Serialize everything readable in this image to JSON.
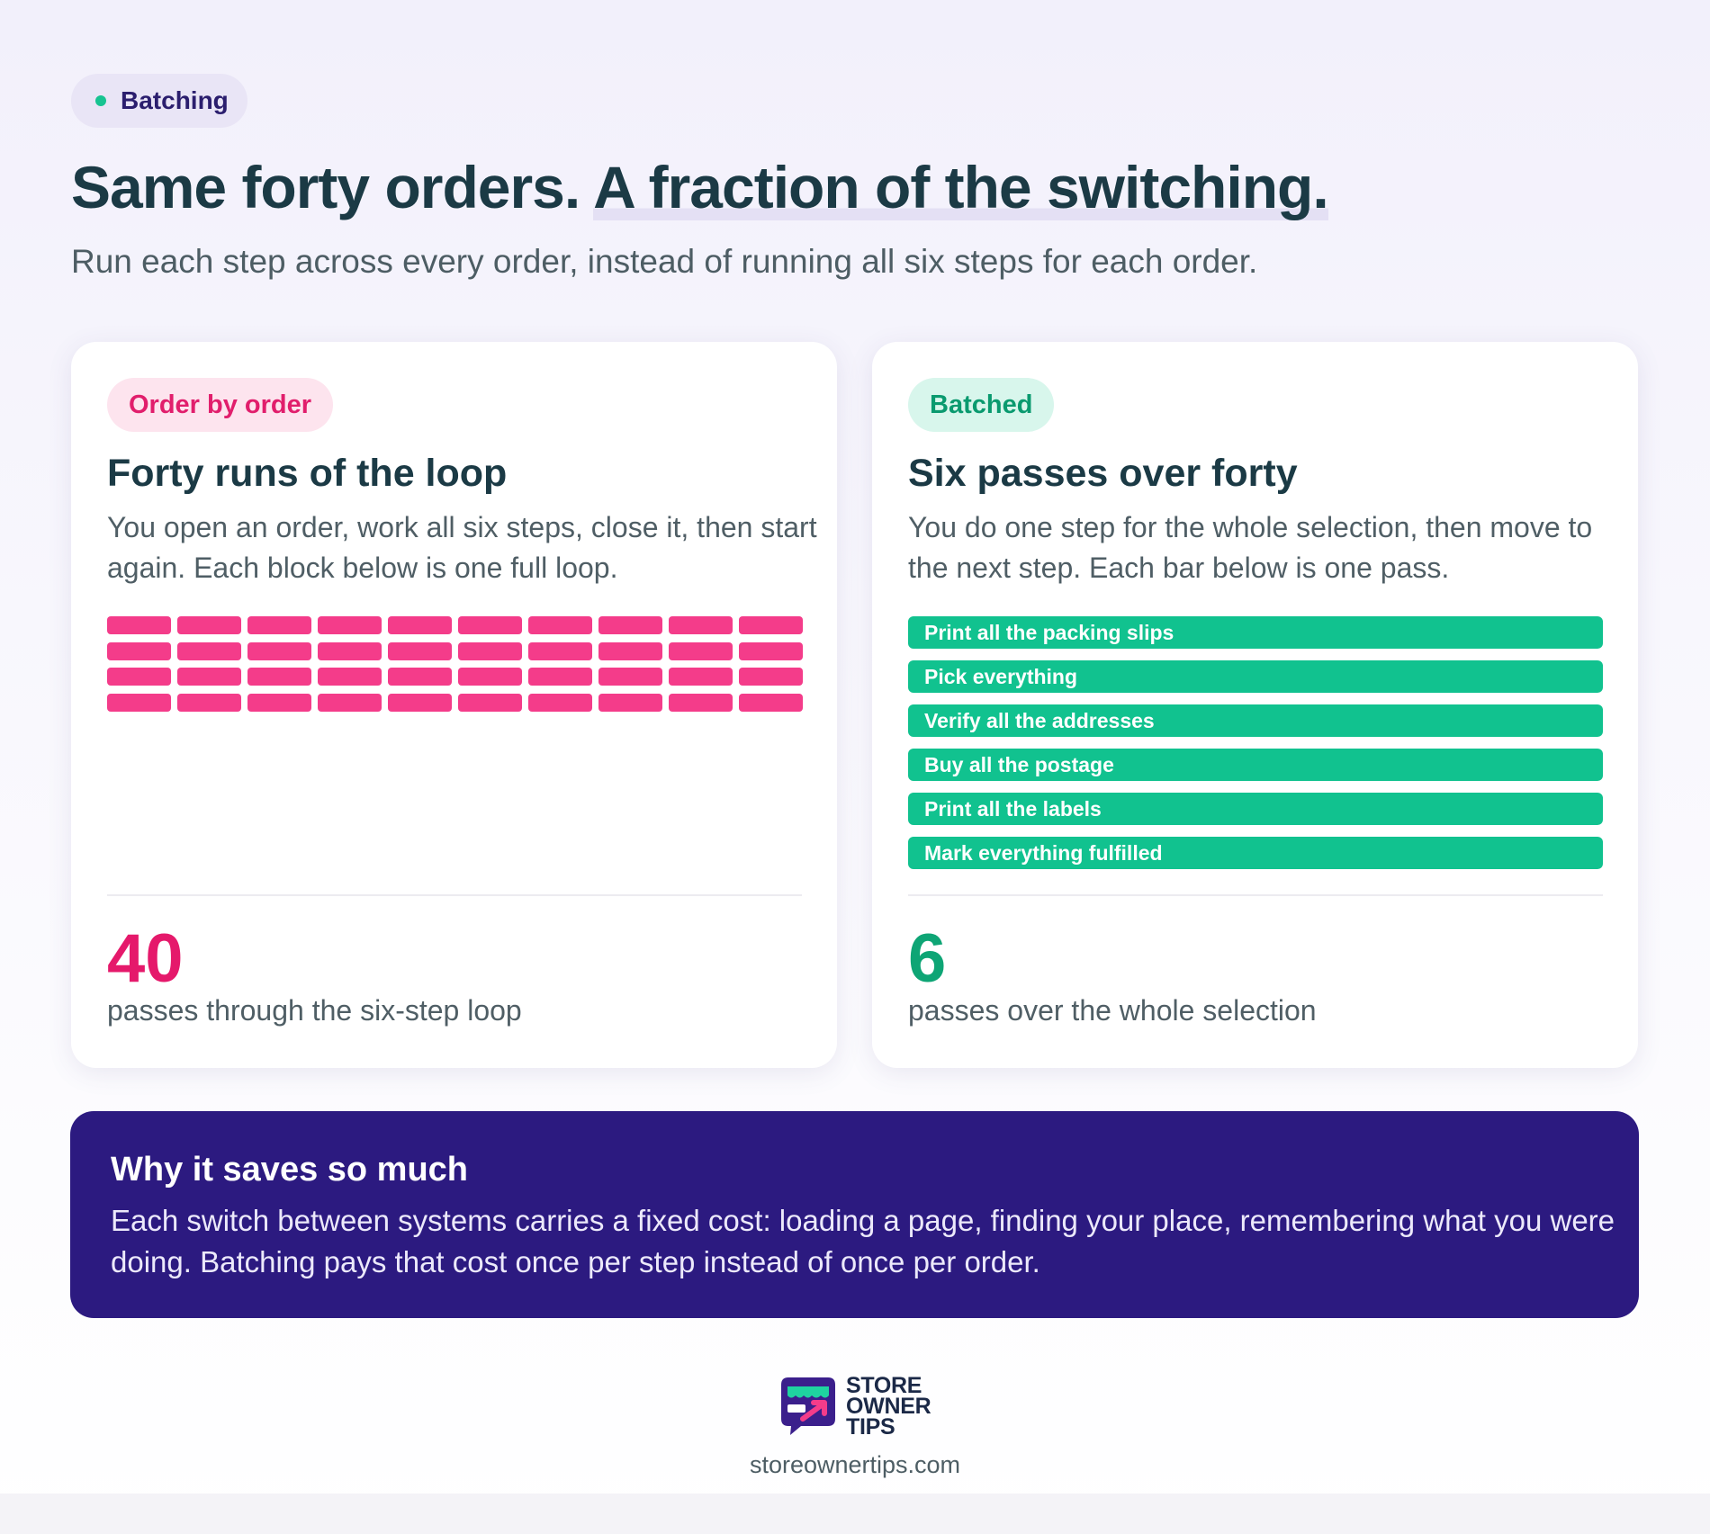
{
  "tag": {
    "label": "Batching",
    "dot_color": "#17c391"
  },
  "headline": {
    "part1": "Same forty orders. ",
    "part2": "A fraction of the switching."
  },
  "subhead": "Run each step across every order, instead of running all six steps for each order.",
  "left_card": {
    "badge": "Order by order",
    "title": "Forty runs of the loop",
    "description": "You open an order, work all six steps, close it, then start again. Each block below is one full loop.",
    "block_count": 40,
    "block_color": "#f43c8a",
    "stat_value": "40",
    "stat_caption": "passes through the six-step loop"
  },
  "right_card": {
    "badge": "Batched",
    "title": "Six passes over forty",
    "description": "You do one step for the whole selection, then move to the next step. Each bar below is one pass.",
    "bar_color": "#11c28f",
    "passes": [
      "Print all the packing slips",
      "Pick everything",
      "Verify all the addresses",
      "Buy all the postage",
      "Print all the labels",
      "Mark everything fulfilled"
    ],
    "stat_value": "6",
    "stat_caption": "passes over the whole selection"
  },
  "why": {
    "title": "Why it saves so much",
    "body": "Each switch between systems carries a fixed cost: loading a page, finding your place, remembering what you were doing. Batching pays that cost once per step instead of once per order."
  },
  "footer": {
    "logo_lines": [
      "STORE",
      "OWNER",
      "TIPS"
    ],
    "url": "storeownertips.com"
  }
}
